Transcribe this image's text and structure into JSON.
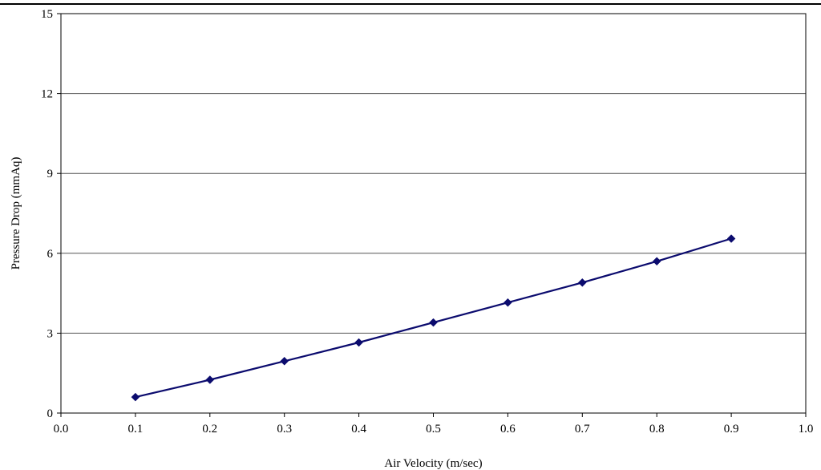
{
  "chart_data": {
    "type": "line",
    "title": "",
    "xlabel": "Air Velocity (m/sec)",
    "ylabel": "Pressure Drop (mmAq)",
    "xlim": [
      0.0,
      1.0
    ],
    "ylim": [
      0,
      15
    ],
    "x_ticks": [
      "0.0",
      "0.1",
      "0.2",
      "0.3",
      "0.4",
      "0.5",
      "0.6",
      "0.7",
      "0.8",
      "0.9",
      "1.0"
    ],
    "y_ticks": [
      "0",
      "3",
      "6",
      "9",
      "12",
      "15"
    ],
    "grid": "horizontal",
    "legend": "none",
    "series": [
      {
        "x": [
          0.1,
          0.2,
          0.3,
          0.4,
          0.5,
          0.6,
          0.7,
          0.8,
          0.9
        ],
        "y": [
          0.6,
          1.25,
          1.95,
          2.65,
          3.4,
          4.15,
          4.9,
          5.7,
          6.55
        ],
        "color": "#0b0b6e",
        "marker": "diamond"
      }
    ]
  }
}
